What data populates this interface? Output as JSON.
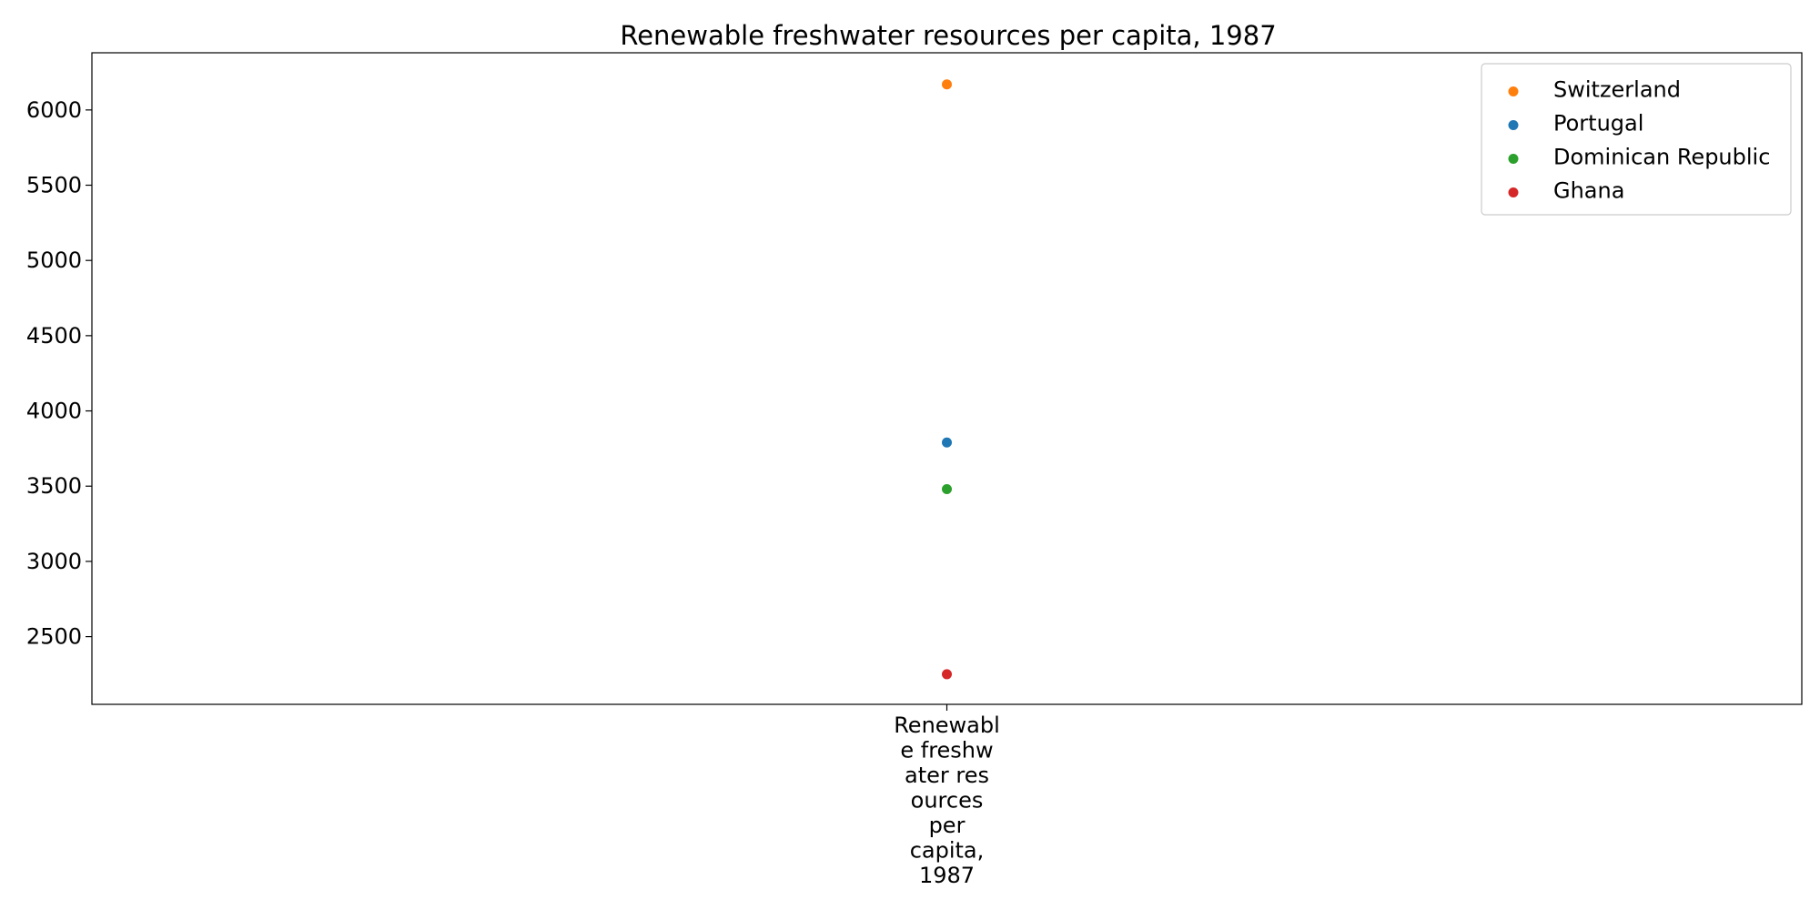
{
  "chart_data": {
    "type": "scatter",
    "title": "Renewable freshwater resources per capita, 1987",
    "xlabel": "",
    "ylabel": "",
    "categories": [
      "Renewable freshwater resources per capita, 1987"
    ],
    "category_label_lines": [
      "Renewabl",
      "e freshw",
      "ater res",
      "ources",
      "per",
      "capita,",
      "1987"
    ],
    "ylim": [
      2050,
      6380
    ],
    "yticks": [
      2500,
      3000,
      3500,
      4000,
      4500,
      5000,
      5500,
      6000
    ],
    "grid": false,
    "legend_position": "top-right",
    "series": [
      {
        "name": "Switzerland",
        "color": "#ff7f0e",
        "values": [
          6170
        ]
      },
      {
        "name": "Portugal",
        "color": "#1f77b4",
        "values": [
          3790
        ]
      },
      {
        "name": "Dominican Republic",
        "color": "#2ca02c",
        "values": [
          3480
        ]
      },
      {
        "name": "Ghana",
        "color": "#d62728",
        "values": [
          2250
        ]
      }
    ]
  }
}
